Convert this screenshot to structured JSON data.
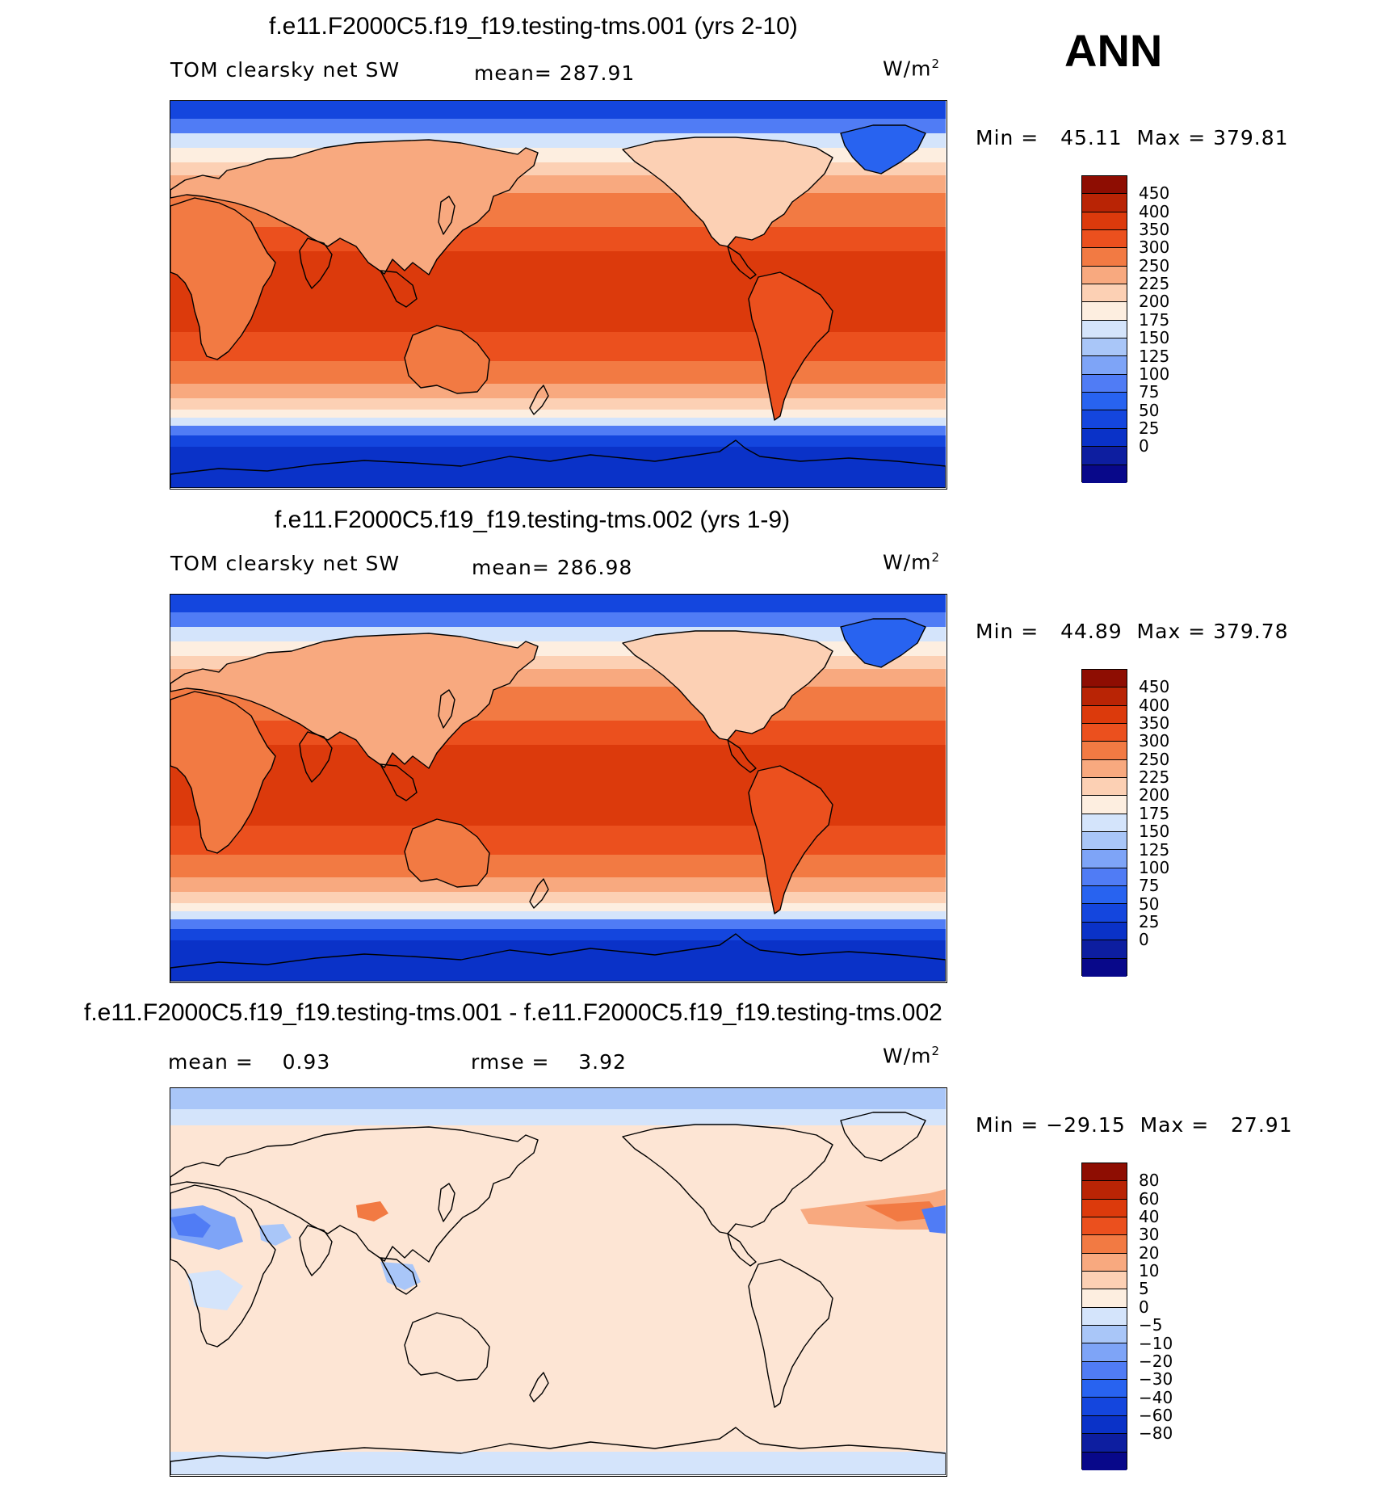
{
  "season": "ANN",
  "palette": {
    "full": [
      "#08088a",
      "#0d1ea0",
      "#0a32c8",
      "#1446de",
      "#2863f0",
      "#507cf5",
      "#7ea4f7",
      "#a9c6f8",
      "#d4e4fb",
      "#fdeee0",
      "#fcd0b4",
      "#f8a97f",
      "#f27a43",
      "#eb501e",
      "#dc3a0c",
      "#b92405",
      "#8e0d02"
    ],
    "regions": {
      "polar": "#0a32c8",
      "polarDeep": "#1446de",
      "subpolar": "#507cf5",
      "transition": "#d4e4fb",
      "light": "#fcd0b4",
      "mid": "#f27a43",
      "tropics": "#dc3a0c",
      "sub": "#eb501e",
      "greenland": "#2863f0",
      "diffBase": "#fde5d4",
      "diffBlueLight": "#d4e4fb",
      "diffBlue": "#a9c6f8",
      "diffBlueMid": "#7ea4f7",
      "diffRed": "#f8a97f",
      "diffRedMid": "#f27a43"
    }
  },
  "panels": [
    {
      "title": "f.e11.F2000C5.f19_f19.testing-tms.001 (yrs 2-10)",
      "left": "TOM clearsky net SW",
      "center": "mean= 287.91",
      "units": "W/m",
      "units_sup": "2",
      "minmax": "Min =   45.11  Max = 379.81",
      "levels": [
        "450",
        "400",
        "350",
        "300",
        "250",
        "225",
        "200",
        "175",
        "150",
        "125",
        "100",
        "75",
        "50",
        "25",
        "0"
      ],
      "kind": "field"
    },
    {
      "title": "f.e11.F2000C5.f19_f19.testing-tms.002 (yrs 1-9)",
      "left": "TOM clearsky net SW",
      "center": "mean= 286.98",
      "units": "W/m",
      "units_sup": "2",
      "minmax": "Min =   44.89  Max = 379.78",
      "levels": [
        "450",
        "400",
        "350",
        "300",
        "250",
        "225",
        "200",
        "175",
        "150",
        "125",
        "100",
        "75",
        "50",
        "25",
        "0"
      ],
      "kind": "field"
    },
    {
      "title": "f.e11.F2000C5.f19_f19.testing-tms.001 - f.e11.F2000C5.f19_f19.testing-tms.002",
      "left": "mean =    0.93",
      "center": "rmse =    3.92",
      "units": "W/m",
      "units_sup": "2",
      "minmax": "Min = −29.15  Max =   27.91",
      "levels": [
        "80",
        "60",
        "40",
        "30",
        "20",
        "10",
        "5",
        "0",
        "−5",
        "−10",
        "−20",
        "−30",
        "−40",
        "−60",
        "−80"
      ],
      "kind": "diff"
    }
  ]
}
